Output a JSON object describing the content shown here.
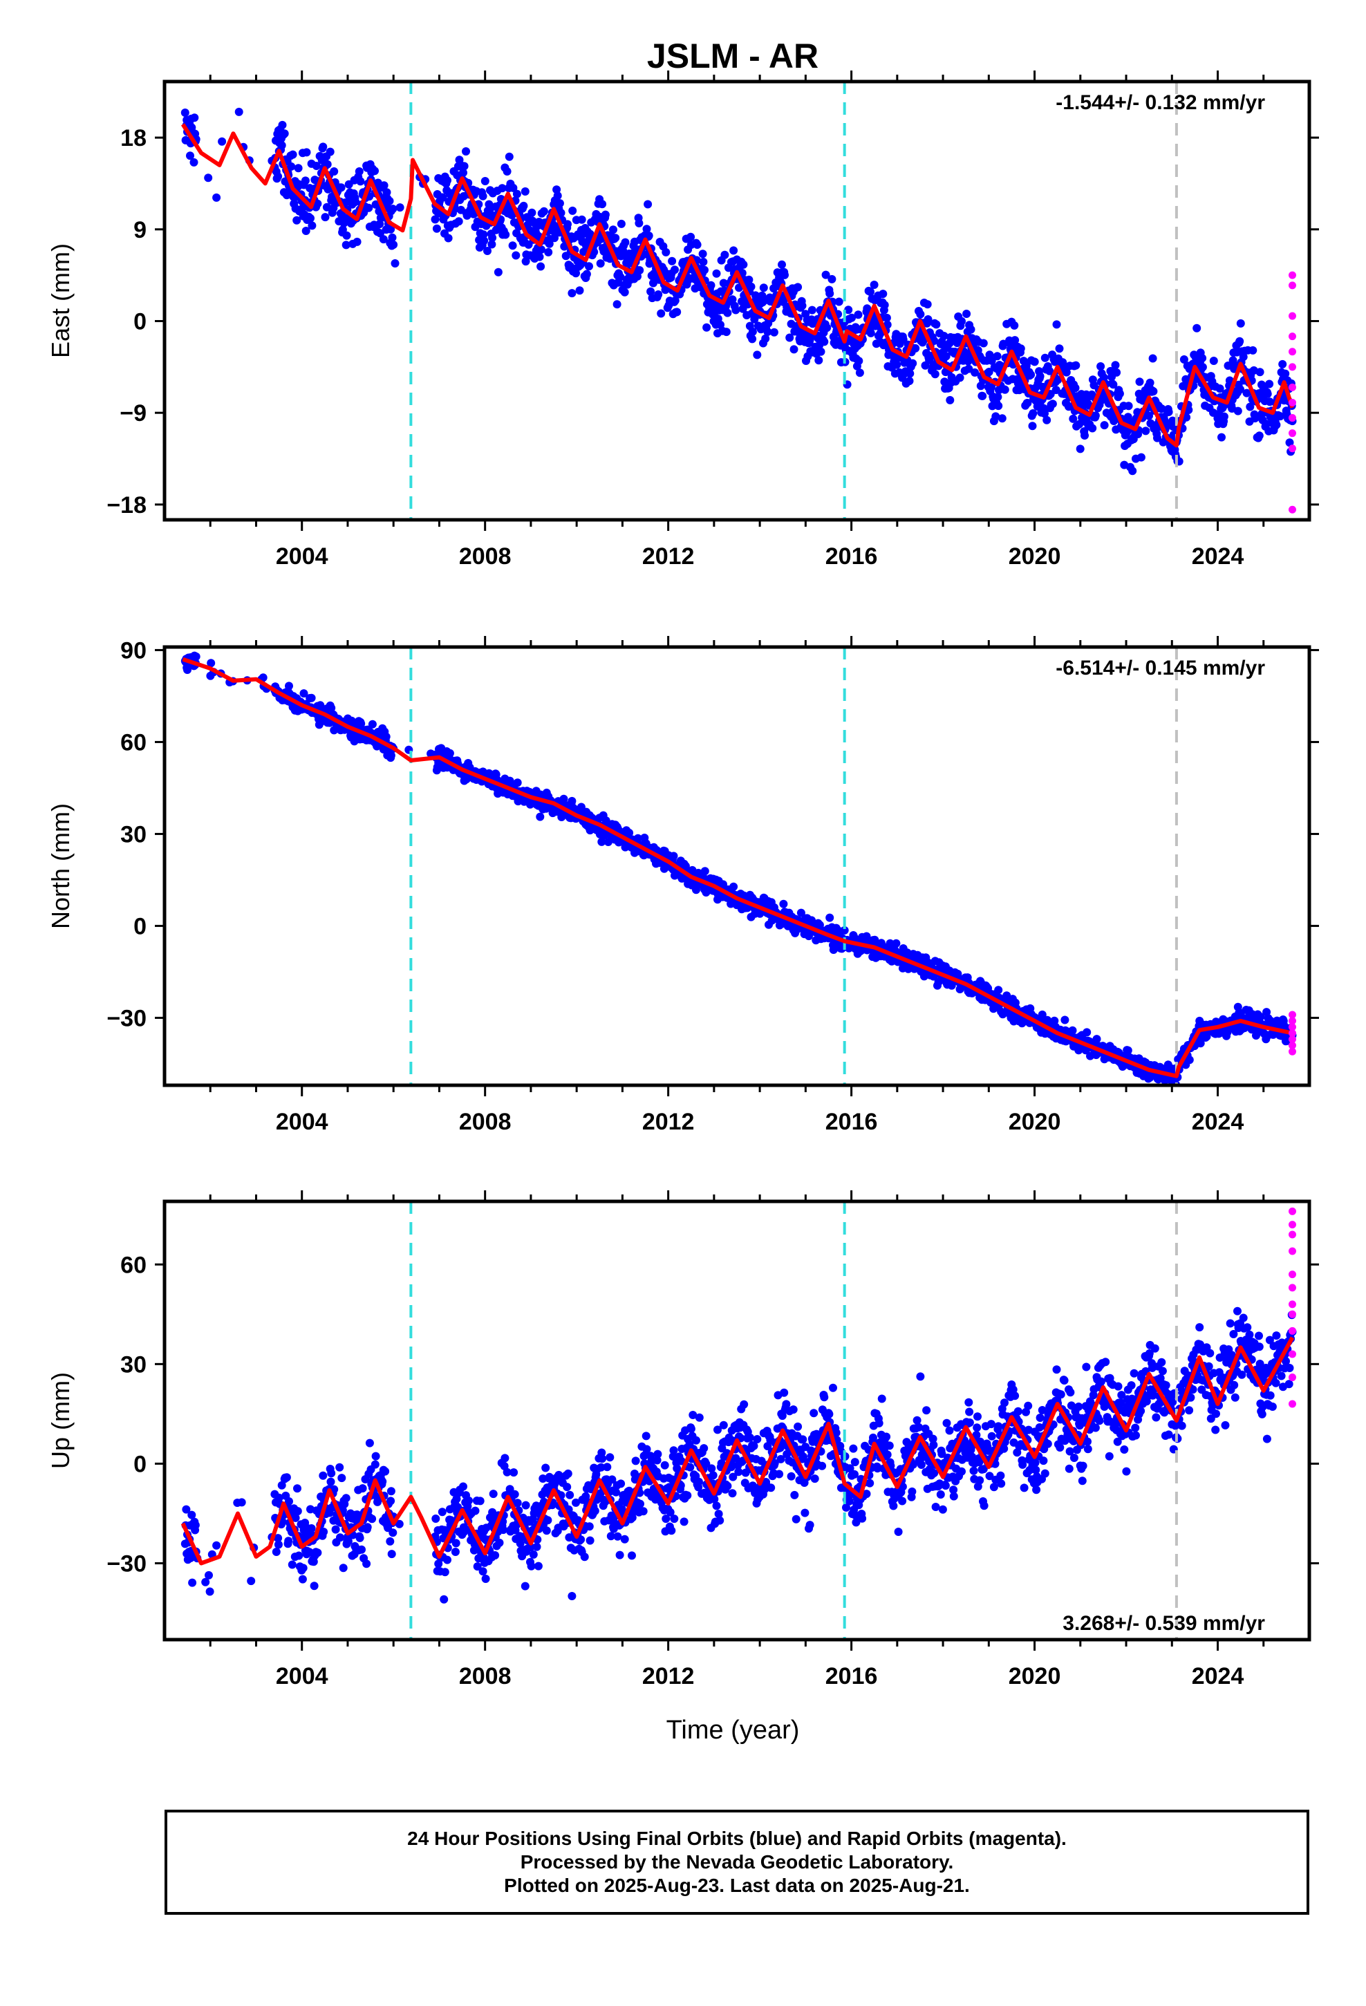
{
  "title": "JSLM - AR",
  "xlabel": "Time (year)",
  "x_ticks": [
    "2004",
    "2008",
    "2012",
    "2016",
    "2020",
    "2024"
  ],
  "footer": {
    "line1": "24 Hour Positions Using Final Orbits (blue) and Rapid Orbits (magenta).",
    "line2": "Processed by the Nevada Geodetic Laboratory.",
    "line3": "Plotted on 2025-Aug-23. Last data on 2025-Aug-21."
  },
  "colors": {
    "final_orbits": "#0000ff",
    "rapid_orbits": "#ff00ff",
    "model_fit": "#ff0000",
    "equipment_change": "#33dddd",
    "earthquake_offset": "#c0c0c0"
  },
  "chart_data": [
    {
      "type": "scatter",
      "panel": "east",
      "ylabel": "East (mm)",
      "xlim": [
        2001.0,
        2026.0
      ],
      "ylim": [
        -19.5,
        23.5
      ],
      "yticks": [
        -18,
        -9,
        0,
        9,
        18
      ],
      "rate_text": "-1.544+/- 0.132 mm/yr",
      "rate_position": "top-right",
      "x_start": 2001.45,
      "x_end": 2025.63,
      "vlines_cyan": [
        2006.38,
        2015.85
      ],
      "vline_gray": [
        2023.1
      ],
      "fit_points": [
        [
          2001.4,
          19.3
        ],
        [
          2001.8,
          16.5
        ],
        [
          2002.2,
          15.3
        ],
        [
          2002.5,
          18.4
        ],
        [
          2002.9,
          15.0
        ],
        [
          2003.2,
          13.5
        ],
        [
          2003.5,
          16.7
        ],
        [
          2003.8,
          13.0
        ],
        [
          2004.2,
          11.2
        ],
        [
          2004.5,
          15.0
        ],
        [
          2004.9,
          11.0
        ],
        [
          2005.2,
          10.0
        ],
        [
          2005.5,
          13.8
        ],
        [
          2005.9,
          9.7
        ],
        [
          2006.2,
          8.9
        ],
        [
          2006.38,
          12.0
        ],
        [
          2006.42,
          15.8
        ],
        [
          2006.9,
          11.5
        ],
        [
          2007.2,
          10.5
        ],
        [
          2007.5,
          14.0
        ],
        [
          2007.9,
          10.2
        ],
        [
          2008.2,
          9.5
        ],
        [
          2008.5,
          12.5
        ],
        [
          2008.9,
          8.5
        ],
        [
          2009.2,
          7.5
        ],
        [
          2009.5,
          11.0
        ],
        [
          2009.9,
          6.8
        ],
        [
          2010.2,
          6.0
        ],
        [
          2010.5,
          9.5
        ],
        [
          2010.9,
          5.5
        ],
        [
          2011.2,
          4.8
        ],
        [
          2011.5,
          8.0
        ],
        [
          2011.9,
          3.8
        ],
        [
          2012.2,
          3.0
        ],
        [
          2012.5,
          6.2
        ],
        [
          2012.9,
          2.5
        ],
        [
          2013.2,
          1.8
        ],
        [
          2013.5,
          4.8
        ],
        [
          2013.9,
          1.0
        ],
        [
          2014.2,
          0.3
        ],
        [
          2014.5,
          3.5
        ],
        [
          2014.9,
          -0.5
        ],
        [
          2015.2,
          -1.2
        ],
        [
          2015.5,
          2.0
        ],
        [
          2015.85,
          -2.0
        ],
        [
          2015.9,
          -1.0
        ],
        [
          2016.2,
          -1.8
        ],
        [
          2016.5,
          1.5
        ],
        [
          2016.9,
          -2.8
        ],
        [
          2017.2,
          -3.5
        ],
        [
          2017.5,
          0.0
        ],
        [
          2017.9,
          -4.0
        ],
        [
          2018.2,
          -4.8
        ],
        [
          2018.5,
          -1.5
        ],
        [
          2018.9,
          -5.5
        ],
        [
          2019.2,
          -6.2
        ],
        [
          2019.5,
          -3.0
        ],
        [
          2019.9,
          -7.0
        ],
        [
          2020.2,
          -7.5
        ],
        [
          2020.5,
          -4.5
        ],
        [
          2020.9,
          -8.5
        ],
        [
          2021.2,
          -9.2
        ],
        [
          2021.5,
          -6.0
        ],
        [
          2021.9,
          -10.0
        ],
        [
          2022.2,
          -10.6
        ],
        [
          2022.5,
          -7.5
        ],
        [
          2022.9,
          -11.5
        ],
        [
          2023.1,
          -12.2
        ],
        [
          2023.15,
          -10.5
        ],
        [
          2023.5,
          -4.5
        ],
        [
          2023.9,
          -7.5
        ],
        [
          2024.2,
          -8.0
        ],
        [
          2024.5,
          -4.2
        ],
        [
          2024.9,
          -8.5
        ],
        [
          2025.2,
          -9.0
        ],
        [
          2025.45,
          -6.0
        ],
        [
          2025.63,
          -8.5
        ]
      ],
      "rapid_points": [
        [
          2025.63,
          4.5
        ],
        [
          2025.63,
          3.5
        ],
        [
          2025.63,
          0.5
        ],
        [
          2025.63,
          -1.5
        ],
        [
          2025.63,
          -3.0
        ],
        [
          2025.63,
          -4.5
        ],
        [
          2025.63,
          -6.5
        ],
        [
          2025.63,
          -8.0
        ],
        [
          2025.63,
          -9.5
        ],
        [
          2025.63,
          -11.0
        ],
        [
          2025.63,
          -12.5
        ],
        [
          2025.63,
          -18.5
        ]
      ],
      "noise": 1.6
    },
    {
      "type": "scatter",
      "panel": "north",
      "ylabel": "North (mm)",
      "xlim": [
        2001.0,
        2026.0
      ],
      "ylim": [
        -52,
        91
      ],
      "yticks": [
        -30,
        0,
        30,
        60,
        90
      ],
      "rate_text": "-6.514+/- 0.145 mm/yr",
      "rate_position": "top-right",
      "x_start": 2001.45,
      "x_end": 2025.63,
      "vlines_cyan": [
        2006.38,
        2015.85
      ],
      "vline_gray": [
        2023.1
      ],
      "fit_points": [
        [
          2001.4,
          87.0
        ],
        [
          2002.0,
          84.0
        ],
        [
          2002.5,
          80.0
        ],
        [
          2003.0,
          80.5
        ],
        [
          2003.5,
          76.0
        ],
        [
          2004.0,
          72.0
        ],
        [
          2004.5,
          69.0
        ],
        [
          2005.0,
          65.0
        ],
        [
          2005.5,
          62.0
        ],
        [
          2006.0,
          58.0
        ],
        [
          2006.38,
          54.0
        ],
        [
          2007.0,
          55.0
        ],
        [
          2007.5,
          51.0
        ],
        [
          2008.0,
          48.0
        ],
        [
          2008.5,
          45.0
        ],
        [
          2009.0,
          42.0
        ],
        [
          2009.5,
          40.0
        ],
        [
          2010.0,
          36.0
        ],
        [
          2010.5,
          33.0
        ],
        [
          2011.0,
          29.0
        ],
        [
          2011.5,
          25.0
        ],
        [
          2012.0,
          21.0
        ],
        [
          2012.5,
          16.0
        ],
        [
          2013.0,
          13.0
        ],
        [
          2013.5,
          9.0
        ],
        [
          2014.0,
          6.0
        ],
        [
          2014.5,
          3.0
        ],
        [
          2015.0,
          0.0
        ],
        [
          2015.5,
          -3.0
        ],
        [
          2015.85,
          -5.0
        ],
        [
          2016.5,
          -7.0
        ],
        [
          2017.0,
          -10.0
        ],
        [
          2017.5,
          -13.0
        ],
        [
          2018.0,
          -16.0
        ],
        [
          2018.5,
          -19.0
        ],
        [
          2019.0,
          -23.0
        ],
        [
          2019.5,
          -27.0
        ],
        [
          2020.0,
          -31.0
        ],
        [
          2020.5,
          -35.0
        ],
        [
          2021.0,
          -38.0
        ],
        [
          2021.5,
          -41.0
        ],
        [
          2022.0,
          -44.0
        ],
        [
          2022.5,
          -47.0
        ],
        [
          2023.1,
          -49.0
        ],
        [
          2023.15,
          -46.0
        ],
        [
          2023.6,
          -34.0
        ],
        [
          2024.0,
          -33.0
        ],
        [
          2024.5,
          -31.0
        ],
        [
          2025.0,
          -33.0
        ],
        [
          2025.63,
          -35.0
        ]
      ],
      "rapid_points": [
        [
          2025.63,
          -29.0
        ],
        [
          2025.63,
          -31.0
        ],
        [
          2025.63,
          -33.0
        ],
        [
          2025.63,
          -35.0
        ],
        [
          2025.63,
          -37.0
        ],
        [
          2025.63,
          -39.0
        ],
        [
          2025.63,
          -41.0
        ]
      ],
      "noise": 1.6
    },
    {
      "type": "scatter",
      "panel": "up",
      "ylabel": "Up (mm)",
      "xlim": [
        2001.0,
        2026.0
      ],
      "ylim": [
        -53,
        79
      ],
      "yticks": [
        -30,
        0,
        30,
        60
      ],
      "rate_text": "3.268+/- 0.539 mm/yr",
      "rate_position": "bottom-right",
      "x_start": 2001.45,
      "x_end": 2025.63,
      "vlines_cyan": [
        2006.38,
        2015.85
      ],
      "vline_gray": [
        2023.1
      ],
      "fit_points": [
        [
          2001.4,
          -18.0
        ],
        [
          2001.8,
          -30.0
        ],
        [
          2002.2,
          -28.0
        ],
        [
          2002.6,
          -15.0
        ],
        [
          2003.0,
          -28.0
        ],
        [
          2003.3,
          -25.0
        ],
        [
          2003.6,
          -12.0
        ],
        [
          2004.0,
          -25.0
        ],
        [
          2004.3,
          -22.0
        ],
        [
          2004.6,
          -8.0
        ],
        [
          2005.0,
          -21.0
        ],
        [
          2005.3,
          -18.0
        ],
        [
          2005.6,
          -5.0
        ],
        [
          2006.0,
          -18.0
        ],
        [
          2006.38,
          -10.0
        ],
        [
          2006.6,
          -16.0
        ],
        [
          2007.0,
          -28.0
        ],
        [
          2007.5,
          -14.0
        ],
        [
          2008.0,
          -27.0
        ],
        [
          2008.5,
          -10.0
        ],
        [
          2009.0,
          -24.0
        ],
        [
          2009.5,
          -8.0
        ],
        [
          2010.0,
          -22.0
        ],
        [
          2010.5,
          -5.0
        ],
        [
          2011.0,
          -18.0
        ],
        [
          2011.5,
          -1.0
        ],
        [
          2012.0,
          -12.0
        ],
        [
          2012.5,
          4.0
        ],
        [
          2013.0,
          -9.0
        ],
        [
          2013.5,
          7.0
        ],
        [
          2014.0,
          -6.0
        ],
        [
          2014.5,
          10.0
        ],
        [
          2015.0,
          -4.0
        ],
        [
          2015.5,
          12.0
        ],
        [
          2015.85,
          -6.0
        ],
        [
          2016.2,
          -10.0
        ],
        [
          2016.5,
          6.0
        ],
        [
          2017.0,
          -7.0
        ],
        [
          2017.5,
          8.0
        ],
        [
          2018.0,
          -4.0
        ],
        [
          2018.5,
          11.0
        ],
        [
          2019.0,
          -1.0
        ],
        [
          2019.5,
          14.0
        ],
        [
          2020.0,
          2.0
        ],
        [
          2020.5,
          18.0
        ],
        [
          2021.0,
          6.0
        ],
        [
          2021.5,
          23.0
        ],
        [
          2022.0,
          10.0
        ],
        [
          2022.5,
          27.0
        ],
        [
          2023.1,
          13.0
        ],
        [
          2023.6,
          32.0
        ],
        [
          2024.0,
          18.0
        ],
        [
          2024.5,
          35.0
        ],
        [
          2025.0,
          22.0
        ],
        [
          2025.63,
          38.0
        ]
      ],
      "rapid_points": [
        [
          2025.63,
          76.0
        ],
        [
          2025.63,
          72.0
        ],
        [
          2025.63,
          69.0
        ],
        [
          2025.63,
          64.0
        ],
        [
          2025.63,
          57.0
        ],
        [
          2025.63,
          53.0
        ],
        [
          2025.63,
          48.0
        ],
        [
          2025.63,
          45.0
        ],
        [
          2025.63,
          40.0
        ],
        [
          2025.63,
          33.0
        ],
        [
          2025.63,
          26.0
        ],
        [
          2025.63,
          18.0
        ]
      ],
      "noise": 5.5
    }
  ]
}
